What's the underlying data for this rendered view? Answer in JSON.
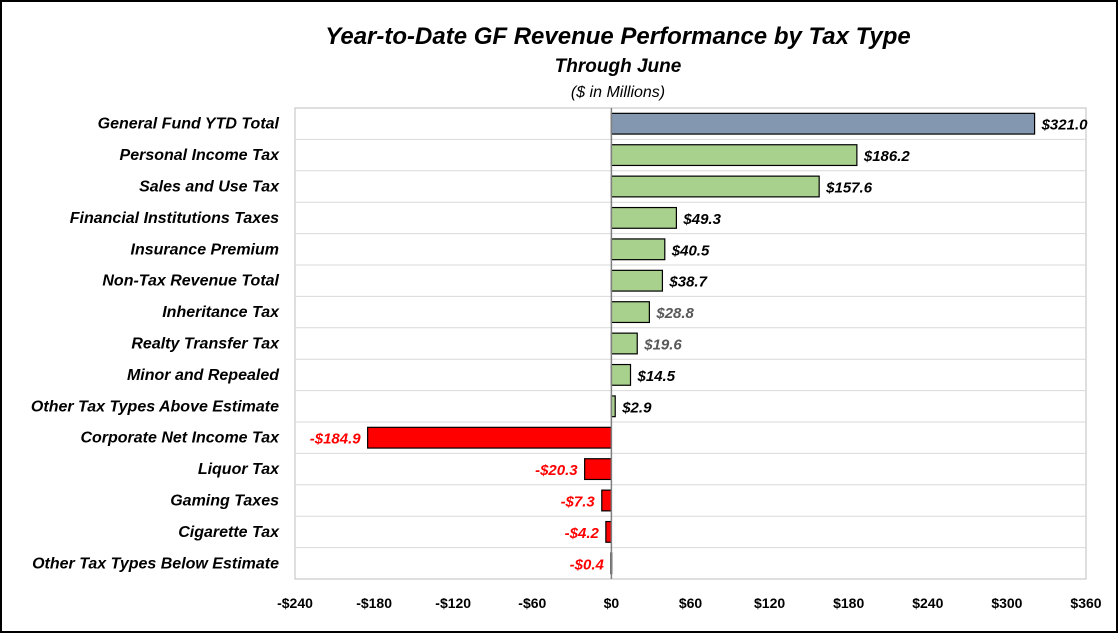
{
  "chart_data": {
    "type": "bar",
    "orientation": "horizontal",
    "title": "Year-to-Date GF Revenue Performance by Tax Type",
    "subtitle": "Through June",
    "unit_note": "($ in Millions)",
    "categories": [
      "General Fund YTD Total",
      "Personal Income Tax",
      "Sales and Use Tax",
      "Financial Institutions Taxes",
      "Insurance Premium",
      "Non-Tax Revenue Total",
      "Inheritance Tax",
      "Realty Transfer Tax",
      "Minor and Repealed",
      "Other Tax Types Above Estimate",
      "Corporate Net Income Tax",
      "Liquor Tax",
      "Gaming Taxes",
      "Cigarette Tax",
      "Other Tax Types Below Estimate"
    ],
    "values": [
      321.0,
      186.2,
      157.6,
      49.3,
      40.5,
      38.7,
      28.8,
      19.6,
      14.5,
      2.9,
      -184.9,
      -20.3,
      -7.3,
      -4.2,
      -0.4
    ],
    "data_labels": [
      "$321.0",
      "$186.2",
      "$157.6",
      "$49.3",
      "$40.5",
      "$38.7",
      "$28.8",
      "$19.6",
      "$14.5",
      "$2.9",
      "-$184.9",
      "-$20.3",
      "-$7.3",
      "-$4.2",
      "-$0.4"
    ],
    "bar_colors": [
      "#8497B0",
      "#A9D18E",
      "#A9D18E",
      "#A9D18E",
      "#A9D18E",
      "#A9D18E",
      "#A9D18E",
      "#A9D18E",
      "#A9D18E",
      "#A9D18E",
      "#FF0000",
      "#FF0000",
      "#FF0000",
      "#FF0000",
      "#FF0000"
    ],
    "label_colors": [
      "#000000",
      "#000000",
      "#000000",
      "#000000",
      "#000000",
      "#000000",
      "#595959",
      "#595959",
      "#000000",
      "#000000",
      "#FF0000",
      "#FF0000",
      "#FF0000",
      "#FF0000",
      "#FF0000"
    ],
    "xlim": [
      -240,
      360
    ],
    "x_ticks": [
      -240,
      -180,
      -120,
      -60,
      0,
      60,
      120,
      180,
      240,
      300,
      360
    ],
    "x_tick_labels": [
      "-$240",
      "-$180",
      "-$120",
      "-$60",
      "$0",
      "$60",
      "$120",
      "$180",
      "$240",
      "$300",
      "$360"
    ],
    "grid": "horizontal",
    "legend": "none"
  }
}
